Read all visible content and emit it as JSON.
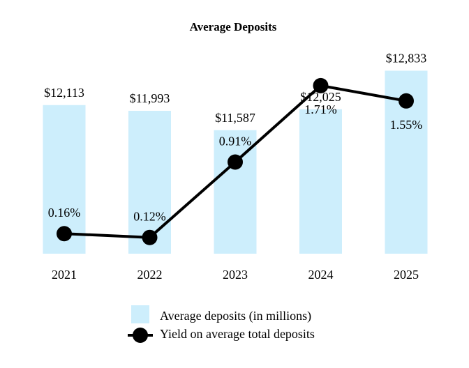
{
  "chart_data": {
    "type": "bar+line",
    "title": "Average Deposits",
    "categories": [
      "2021",
      "2022",
      "2023",
      "2024",
      "2025"
    ],
    "series": [
      {
        "name": "Average deposits (in millions)",
        "type": "bar",
        "values": [
          12113,
          11993,
          11587,
          12025,
          12833
        ],
        "labels": [
          "$12,113",
          "$11,993",
          "$11,587",
          "$12,025",
          "$12,833"
        ],
        "color": "#cdeefc"
      },
      {
        "name": "Yield on average total deposits",
        "type": "line",
        "values": [
          0.16,
          0.12,
          0.91,
          1.71,
          1.55
        ],
        "labels": [
          "0.16%",
          "0.12%",
          "0.91%",
          "1.71%",
          "1.55%"
        ],
        "color": "#000000"
      }
    ],
    "xlabel": "",
    "ylabel": "",
    "bar_ylim": [
      9000,
      13000
    ],
    "line_ylim": [
      -0.05,
      1.95
    ],
    "grid": false,
    "legend": "bottom-center"
  }
}
